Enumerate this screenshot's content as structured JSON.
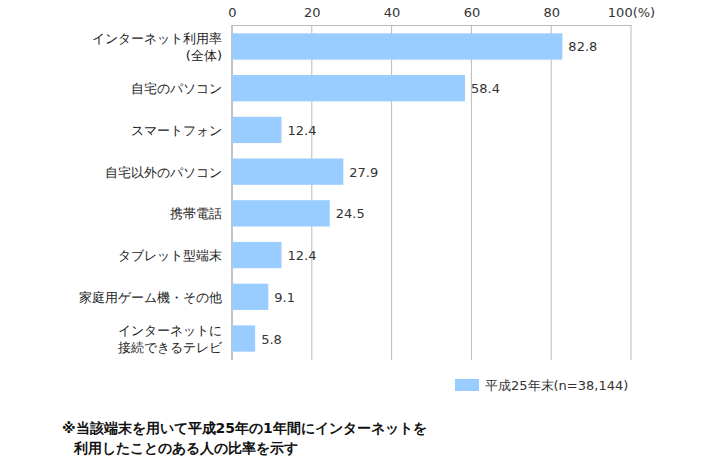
{
  "chart_data": {
    "type": "bar",
    "orientation": "horizontal",
    "categories": [
      "インターネット利用率\n(全体)",
      "自宅のパソコン",
      "スマートフォン",
      "自宅以外のパソコン",
      "携帯電話",
      "タブレット型端末",
      "家庭用ゲーム機・その他",
      "インターネットに\n接続できるテレビ"
    ],
    "series": [
      {
        "name": "平成25年末(n=38,144)",
        "color": "#99ccff",
        "values": [
          82.8,
          58.4,
          12.4,
          27.9,
          24.5,
          12.4,
          9.1,
          5.8
        ]
      }
    ],
    "xlim": [
      0,
      100
    ],
    "xticks": [
      0,
      20,
      40,
      60,
      80,
      {
        "value": 100,
        "label": "100(%)"
      }
    ],
    "grid": true,
    "data_labels": true,
    "legend": "bottom-right",
    "annotation": "※当該端末を用いて平成25年の1年間にインターネットを\n利用したことのある人の比率を示す"
  }
}
